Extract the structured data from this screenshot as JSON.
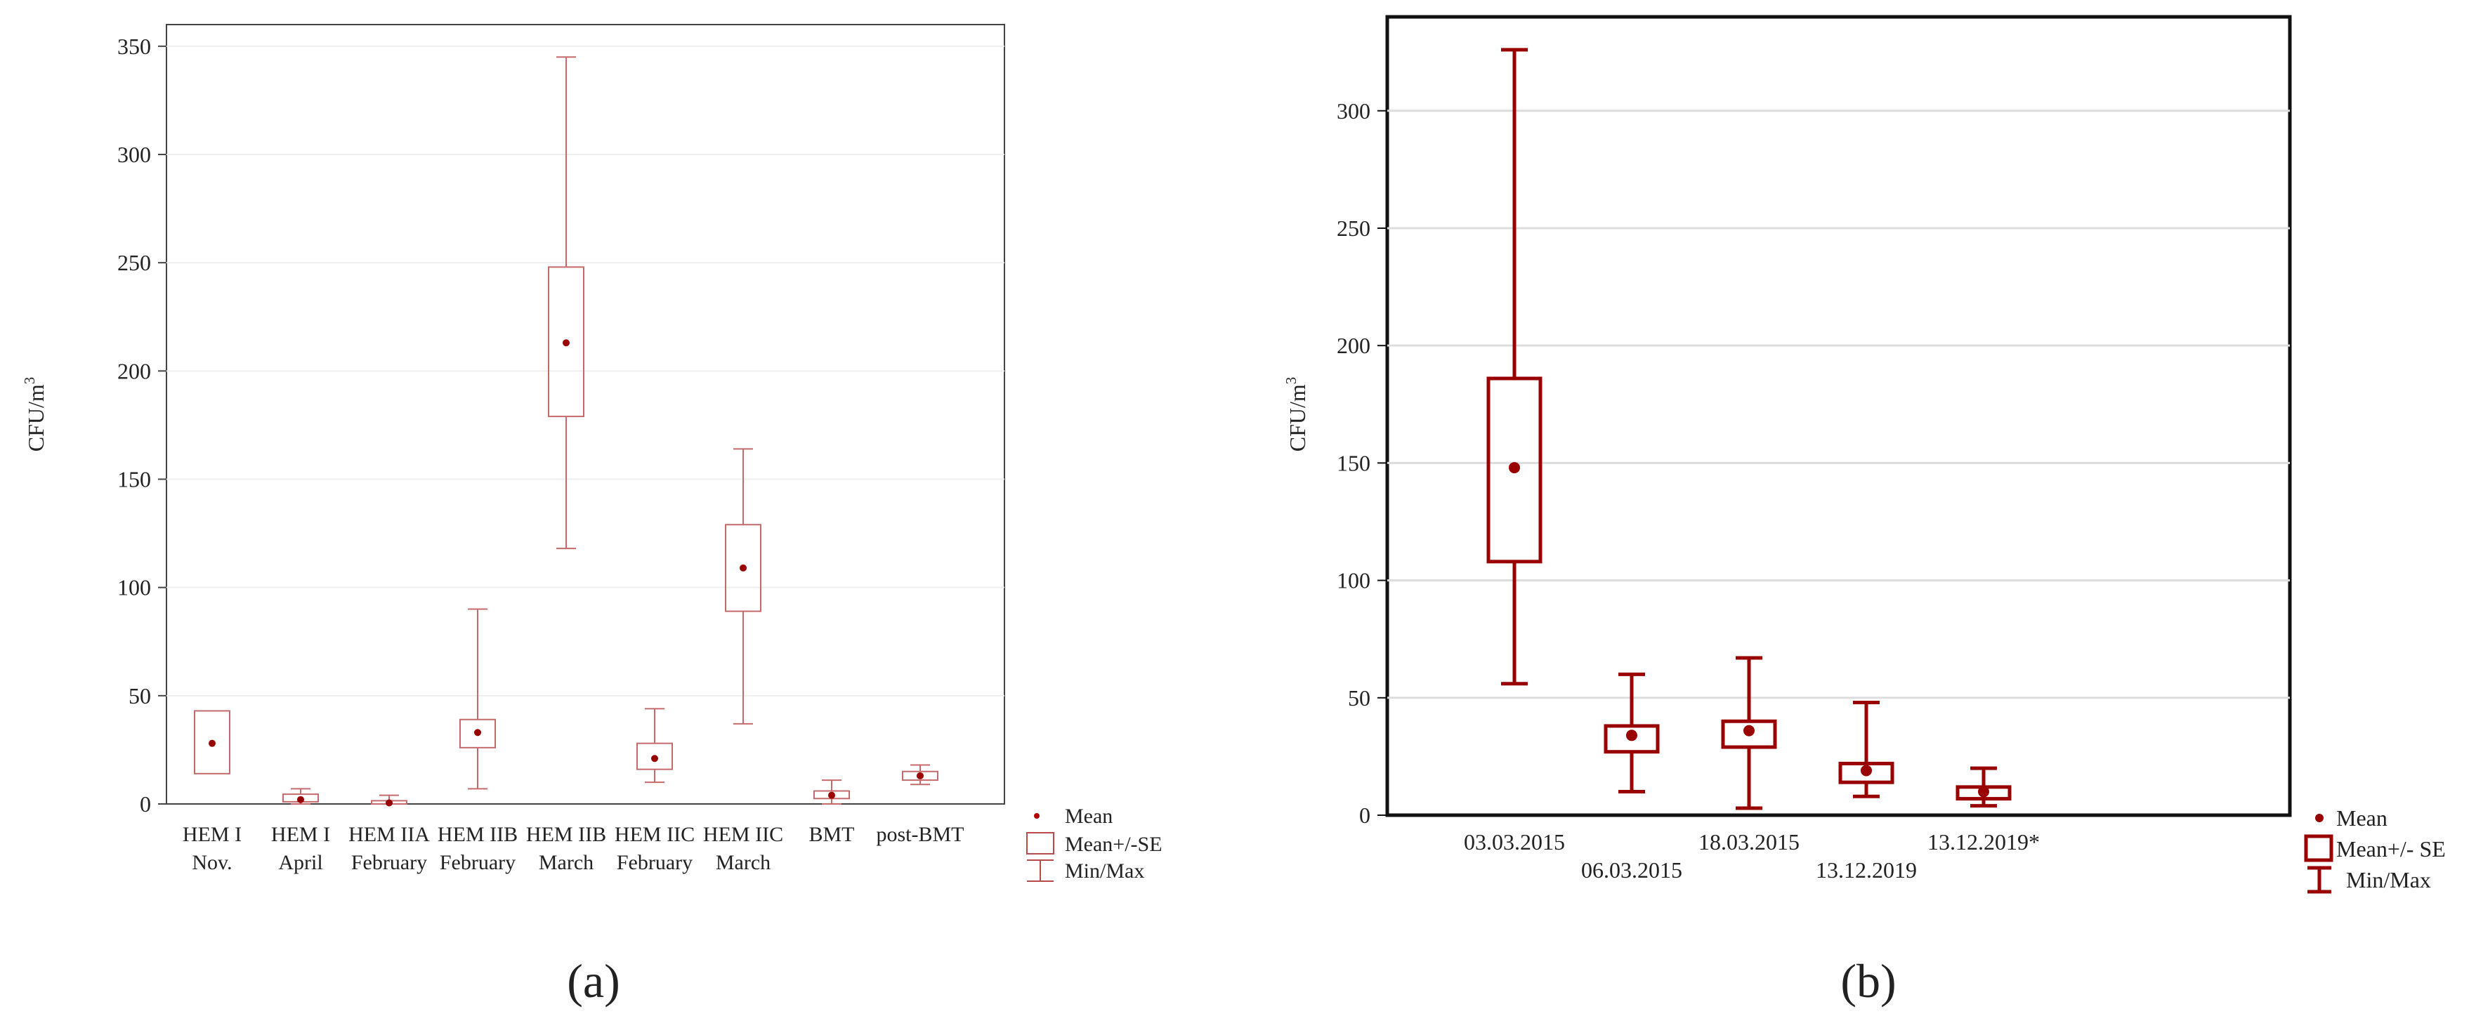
{
  "panels": [
    {
      "panel_label": "(a)",
      "legend": {
        "mean": "Mean",
        "se": "Mean+/-SE",
        "minmax": "Min/Max"
      }
    },
    {
      "panel_label": "(b)",
      "legend": {
        "mean": "Mean",
        "se": "Mean+/- SE",
        "minmax": "Min/Max"
      }
    }
  ],
  "chart_data": [
    {
      "type": "box",
      "ylabel": "CFU/m",
      "ylabel_superscript": "3",
      "ylim": [
        0,
        360
      ],
      "yticks": [
        0,
        50,
        100,
        150,
        200,
        250,
        300,
        350
      ],
      "grid": true,
      "legend_placement": "bottom-right",
      "categories": [
        [
          "HEM I",
          "Nov."
        ],
        [
          "HEM I",
          "April"
        ],
        [
          "HEM IIA",
          "February"
        ],
        [
          "HEM IIB",
          "February"
        ],
        [
          "HEM IIB",
          "March"
        ],
        [
          "HEM IIC",
          "February"
        ],
        [
          "HEM IIC",
          "March"
        ],
        [
          "BMT",
          ""
        ],
        [
          "post-BMT",
          ""
        ]
      ],
      "series": [
        {
          "mean": 28,
          "se_low": 14,
          "se_high": 43,
          "min": null,
          "max": null
        },
        {
          "mean": 2,
          "se_low": 1,
          "se_high": 4.5,
          "min": 0,
          "max": 7
        },
        {
          "mean": 0.5,
          "se_low": 0,
          "se_high": 1.5,
          "min": 0,
          "max": 4
        },
        {
          "mean": 33,
          "se_low": 26,
          "se_high": 39,
          "min": 7,
          "max": 90
        },
        {
          "mean": 213,
          "se_low": 179,
          "se_high": 248,
          "min": 118,
          "max": 345
        },
        {
          "mean": 21,
          "se_low": 16,
          "se_high": 28,
          "min": 10,
          "max": 44
        },
        {
          "mean": 109,
          "se_low": 89,
          "se_high": 129,
          "min": 37,
          "max": 164
        },
        {
          "mean": 4,
          "se_low": 2.5,
          "se_high": 6,
          "min": 0,
          "max": 11
        },
        {
          "mean": 13,
          "se_low": 11,
          "se_high": 15,
          "min": 9,
          "max": 18
        }
      ]
    },
    {
      "type": "box",
      "ylabel": "CFU/m",
      "ylabel_superscript": "3",
      "ylim": [
        0,
        340
      ],
      "yticks": [
        0,
        50,
        100,
        150,
        200,
        250,
        300
      ],
      "grid": true,
      "legend_placement": "bottom-right",
      "categories": [
        "03.03.2015",
        "06.03.2015",
        "18.03.2015",
        "13.12.2019",
        "13.12.2019*"
      ],
      "series": [
        {
          "mean": 148,
          "se_low": 108,
          "se_high": 186,
          "min": 56,
          "max": 326
        },
        {
          "mean": 34,
          "se_low": 27,
          "se_high": 38,
          "min": 10,
          "max": 60
        },
        {
          "mean": 36,
          "se_low": 29,
          "se_high": 40,
          "min": 3,
          "max": 67
        },
        {
          "mean": 19,
          "se_low": 14,
          "se_high": 22,
          "min": 8,
          "max": 48
        },
        {
          "mean": 10,
          "se_low": 7,
          "se_high": 12,
          "min": 4,
          "max": 20
        }
      ]
    }
  ]
}
